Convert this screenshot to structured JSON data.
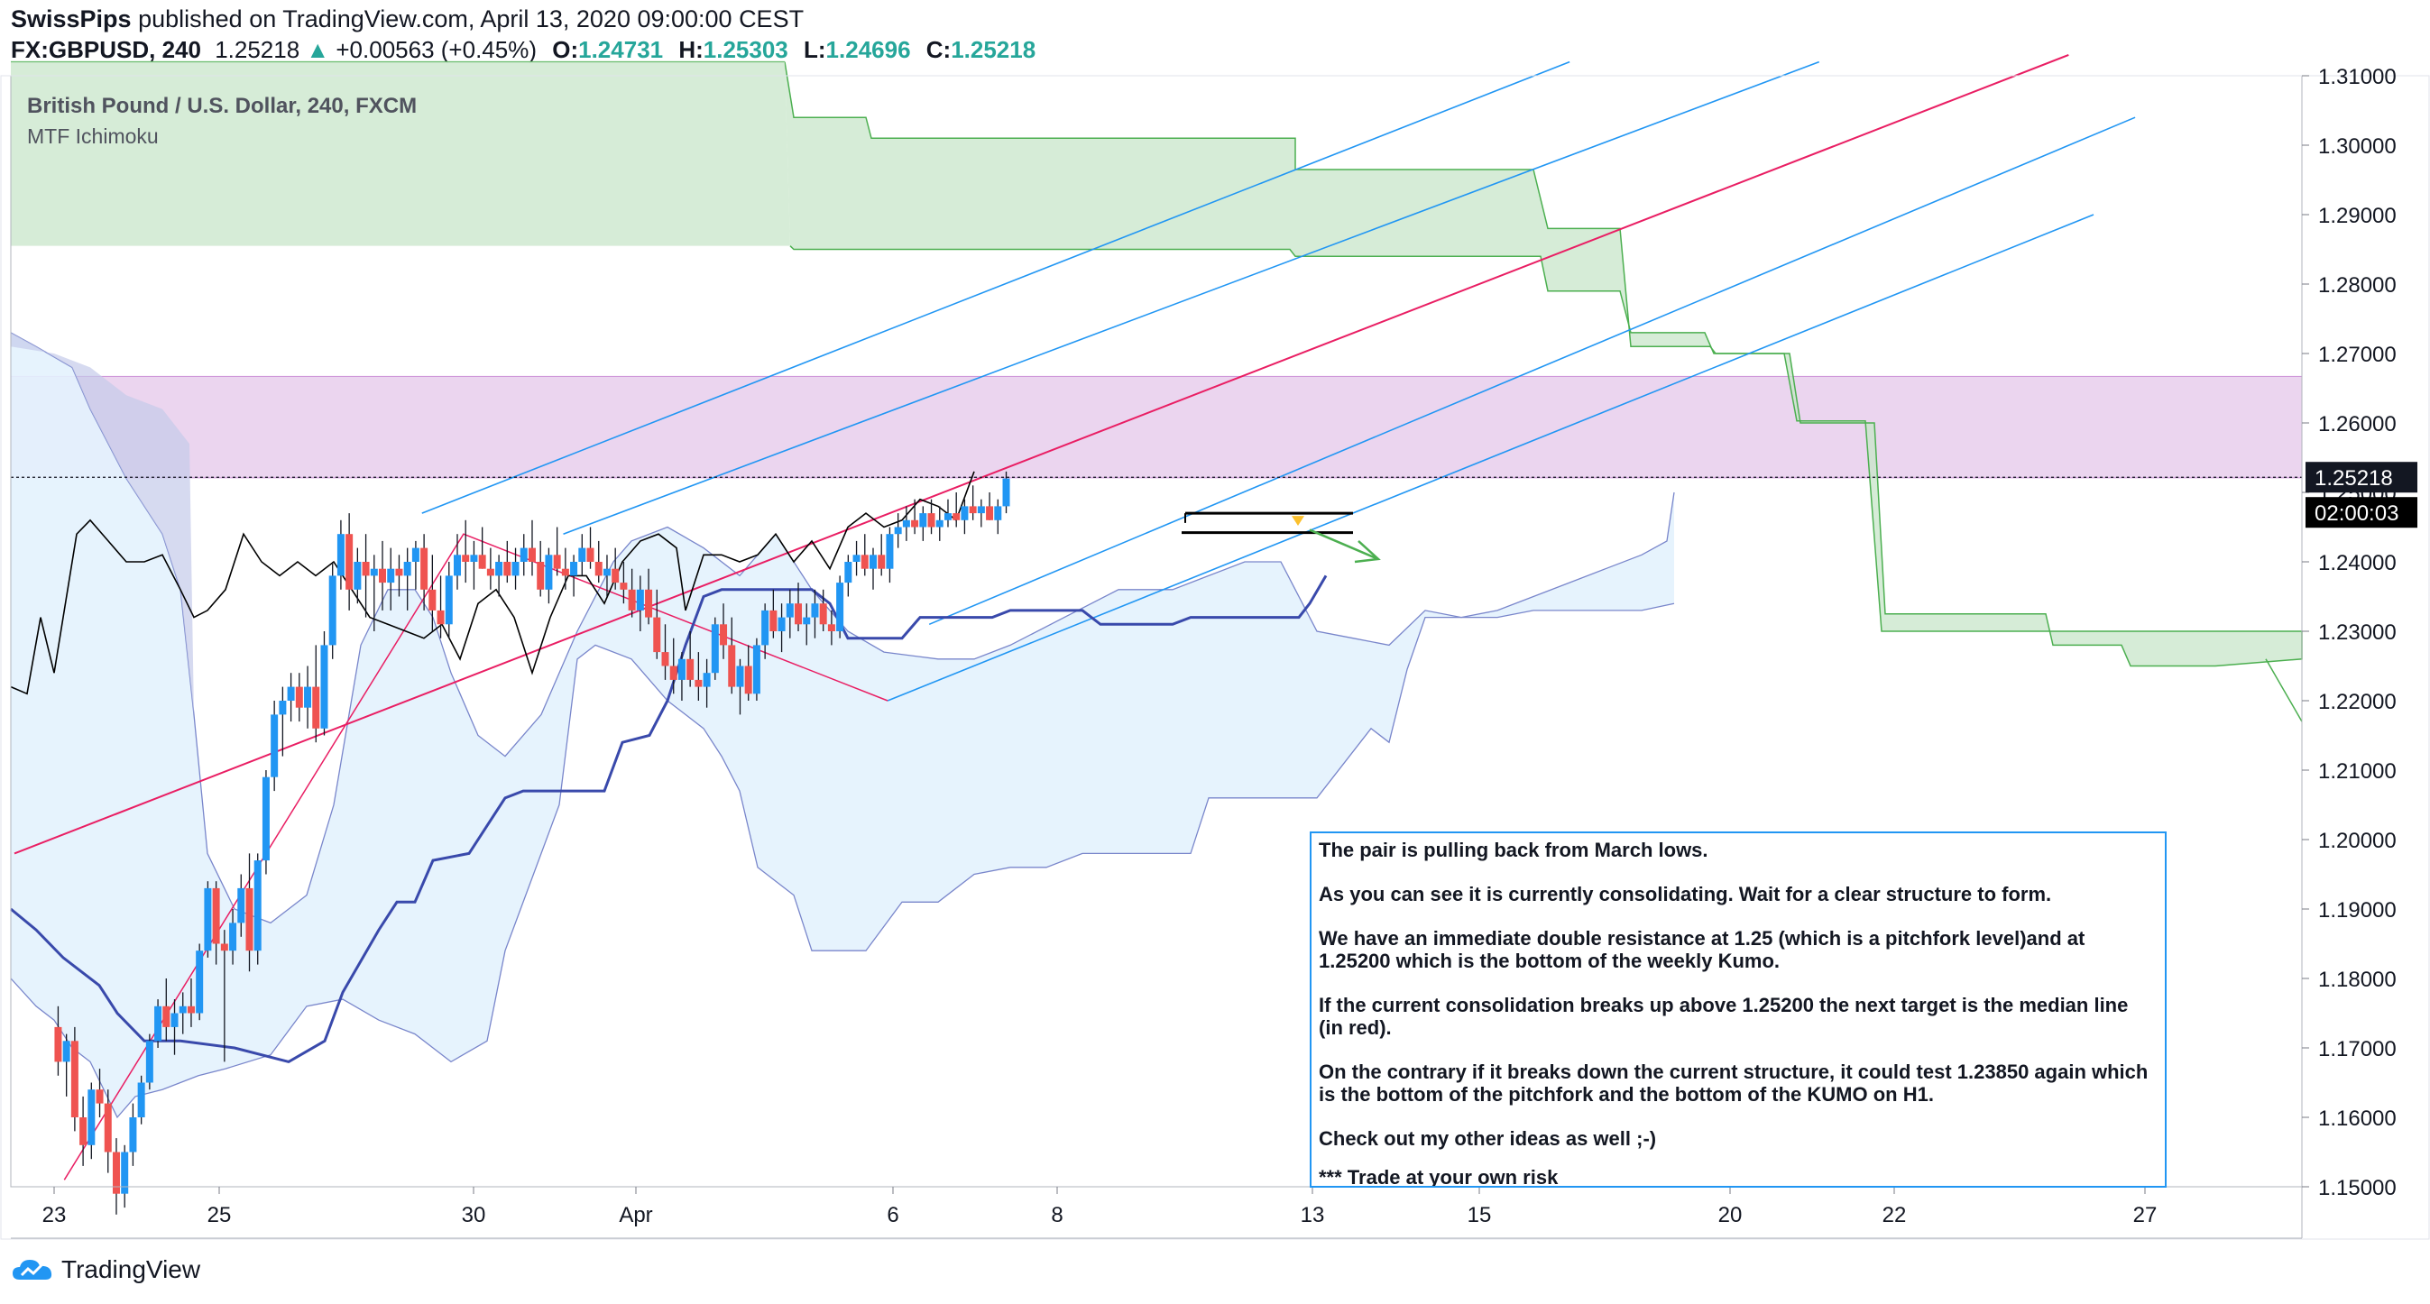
{
  "header": {
    "author": "SwissPips",
    "published_text": "published on TradingView.com, April 13, 2020 09:00:00 CEST",
    "symbol": "FX:GBPUSD, 240",
    "last": "1.25218",
    "change": "+0.00563 (+0.45%)",
    "o_label": "O:",
    "o": "1.24731",
    "h_label": "H:",
    "h": "1.25303",
    "l_label": "L:",
    "l": "1.24696",
    "c_label": "C:",
    "c": "1.25218"
  },
  "legend": {
    "title": "British Pound / U.S. Dollar, 240, FXCM",
    "indicator": "MTF Ichimoku"
  },
  "price_label": "1.25218",
  "countdown": "02:00:03",
  "note": {
    "p1": "The pair is pulling back from March lows.",
    "p2": "As you can see it is currently consolidating. Wait for a clear structure to form.",
    "p3": "We have an immediate double resistance at 1.25 (which is a pitchfork level)and at 1.25200 which is the bottom of the weekly Kumo.",
    "p4": "If the current consolidation breaks up above 1.25200 the next target is the median line (in red).",
    "p5": "On the contrary if it breaks down the current structure, it could test 1.23850 again which is the bottom of the pitchfork and the bottom of the KUMO on H1.",
    "p6": "Check out my other ideas as well ;-)",
    "p7": "*** Trade at your own risk"
  },
  "events": [
    "3",
    "4",
    "7",
    "9",
    "2"
  ],
  "footer": {
    "brand": "TradingView"
  },
  "colors": {
    "up": "#2196f3",
    "down": "#ef5350",
    "weekly_cloud": "#4caf50",
    "zone": "#e1bee7",
    "h1_cloud": "#90caf9",
    "median": "#e91e63"
  },
  "chart_data": {
    "type": "candlestick",
    "ylim": [
      1.15,
      1.31
    ],
    "y_ticks": [
      "1.31000",
      "1.30000",
      "1.29000",
      "1.28000",
      "1.27000",
      "1.26000",
      "1.25000",
      "1.24000",
      "1.23000",
      "1.22000",
      "1.21000",
      "1.20000",
      "1.19000",
      "1.18000",
      "1.17000",
      "1.16000",
      "1.15000"
    ],
    "x_ticks": [
      {
        "label": "23",
        "i": 5
      },
      {
        "label": "25",
        "i": 26
      },
      {
        "label": "30",
        "i": 51
      },
      {
        "label": "Apr",
        "i": 67
      },
      {
        "label": "6",
        "i": 93
      },
      {
        "label": "8",
        "i": 109
      },
      {
        "label": "13",
        "i": 134
      },
      {
        "label": "15",
        "i": 151
      },
      {
        "label": "20",
        "i": 176
      },
      {
        "label": "22",
        "i": 192
      },
      {
        "label": "27",
        "i": 217
      }
    ],
    "n_slots": 231,
    "candles": [
      [
        1.173,
        1.176,
        1.166,
        1.168
      ],
      [
        1.168,
        1.172,
        1.163,
        1.171
      ],
      [
        1.171,
        1.173,
        1.158,
        1.16
      ],
      [
        1.16,
        1.163,
        1.153,
        1.156
      ],
      [
        1.156,
        1.165,
        1.154,
        1.164
      ],
      [
        1.164,
        1.167,
        1.16,
        1.162
      ],
      [
        1.162,
        1.164,
        1.152,
        1.155
      ],
      [
        1.155,
        1.157,
        1.146,
        1.149
      ],
      [
        1.149,
        1.156,
        1.147,
        1.155
      ],
      [
        1.155,
        1.162,
        1.153,
        1.16
      ],
      [
        1.16,
        1.166,
        1.159,
        1.165
      ],
      [
        1.165,
        1.172,
        1.164,
        1.171
      ],
      [
        1.171,
        1.177,
        1.17,
        1.176
      ],
      [
        1.176,
        1.18,
        1.171,
        1.173
      ],
      [
        1.173,
        1.177,
        1.169,
        1.175
      ],
      [
        1.175,
        1.178,
        1.172,
        1.176
      ],
      [
        1.176,
        1.18,
        1.173,
        1.175
      ],
      [
        1.175,
        1.185,
        1.174,
        1.184
      ],
      [
        1.184,
        1.194,
        1.183,
        1.193
      ],
      [
        1.193,
        1.194,
        1.182,
        1.185
      ],
      [
        1.185,
        1.187,
        1.168,
        1.184
      ],
      [
        1.184,
        1.19,
        1.182,
        1.188
      ],
      [
        1.188,
        1.195,
        1.186,
        1.193
      ],
      [
        1.193,
        1.198,
        1.181,
        1.184
      ],
      [
        1.184,
        1.198,
        1.182,
        1.197
      ],
      [
        1.197,
        1.21,
        1.195,
        1.209
      ],
      [
        1.209,
        1.22,
        1.207,
        1.218
      ],
      [
        1.218,
        1.222,
        1.212,
        1.22
      ],
      [
        1.22,
        1.224,
        1.217,
        1.222
      ],
      [
        1.222,
        1.224,
        1.217,
        1.219
      ],
      [
        1.219,
        1.225,
        1.216,
        1.222
      ],
      [
        1.222,
        1.228,
        1.214,
        1.216
      ],
      [
        1.216,
        1.23,
        1.215,
        1.228
      ],
      [
        1.228,
        1.24,
        1.226,
        1.238
      ],
      [
        1.238,
        1.246,
        1.236,
        1.244
      ],
      [
        1.244,
        1.247,
        1.233,
        1.236
      ],
      [
        1.236,
        1.242,
        1.234,
        1.24
      ],
      [
        1.24,
        1.244,
        1.232,
        1.238
      ],
      [
        1.238,
        1.241,
        1.23,
        1.239
      ],
      [
        1.239,
        1.243,
        1.233,
        1.237
      ],
      [
        1.237,
        1.242,
        1.233,
        1.239
      ],
      [
        1.239,
        1.241,
        1.235,
        1.238
      ],
      [
        1.238,
        1.242,
        1.233,
        1.24
      ],
      [
        1.24,
        1.243,
        1.236,
        1.242
      ],
      [
        1.242,
        1.244,
        1.233,
        1.236
      ],
      [
        1.236,
        1.241,
        1.23,
        1.233
      ],
      [
        1.233,
        1.238,
        1.229,
        1.231
      ],
      [
        1.231,
        1.24,
        1.229,
        1.238
      ],
      [
        1.238,
        1.244,
        1.236,
        1.241
      ],
      [
        1.241,
        1.246,
        1.237,
        1.24
      ],
      [
        1.24,
        1.243,
        1.236,
        1.241
      ],
      [
        1.241,
        1.245,
        1.239,
        1.239
      ],
      [
        1.239,
        1.242,
        1.236,
        1.238
      ],
      [
        1.238,
        1.241,
        1.235,
        1.24
      ],
      [
        1.24,
        1.243,
        1.237,
        1.238
      ],
      [
        1.238,
        1.242,
        1.236,
        1.24
      ],
      [
        1.24,
        1.244,
        1.238,
        1.242
      ],
      [
        1.242,
        1.246,
        1.238,
        1.24
      ],
      [
        1.24,
        1.243,
        1.235,
        1.236
      ],
      [
        1.236,
        1.242,
        1.234,
        1.241
      ],
      [
        1.241,
        1.245,
        1.238,
        1.239
      ],
      [
        1.239,
        1.242,
        1.236,
        1.238
      ],
      [
        1.238,
        1.241,
        1.235,
        1.24
      ],
      [
        1.24,
        1.244,
        1.238,
        1.242
      ],
      [
        1.242,
        1.245,
        1.239,
        1.24
      ],
      [
        1.24,
        1.243,
        1.237,
        1.238
      ],
      [
        1.238,
        1.241,
        1.235,
        1.239
      ],
      [
        1.239,
        1.242,
        1.236,
        1.237
      ],
      [
        1.237,
        1.24,
        1.234,
        1.236
      ],
      [
        1.236,
        1.239,
        1.232,
        1.233
      ],
      [
        1.233,
        1.238,
        1.23,
        1.236
      ],
      [
        1.236,
        1.239,
        1.231,
        1.232
      ],
      [
        1.232,
        1.236,
        1.226,
        1.227
      ],
      [
        1.227,
        1.231,
        1.223,
        1.225
      ],
      [
        1.225,
        1.229,
        1.221,
        1.223
      ],
      [
        1.223,
        1.227,
        1.22,
        1.226
      ],
      [
        1.226,
        1.23,
        1.222,
        1.223
      ],
      [
        1.223,
        1.227,
        1.22,
        1.222
      ],
      [
        1.222,
        1.226,
        1.219,
        1.224
      ],
      [
        1.224,
        1.232,
        1.223,
        1.231
      ],
      [
        1.231,
        1.234,
        1.226,
        1.228
      ],
      [
        1.228,
        1.232,
        1.221,
        1.222
      ],
      [
        1.222,
        1.226,
        1.218,
        1.225
      ],
      [
        1.225,
        1.228,
        1.22,
        1.221
      ],
      [
        1.221,
        1.229,
        1.22,
        1.228
      ],
      [
        1.228,
        1.234,
        1.226,
        1.233
      ],
      [
        1.233,
        1.236,
        1.229,
        1.23
      ],
      [
        1.23,
        1.234,
        1.227,
        1.232
      ],
      [
        1.232,
        1.236,
        1.229,
        1.234
      ],
      [
        1.234,
        1.237,
        1.23,
        1.231
      ],
      [
        1.231,
        1.234,
        1.228,
        1.232
      ],
      [
        1.232,
        1.236,
        1.229,
        1.234
      ],
      [
        1.234,
        1.236,
        1.23,
        1.231
      ],
      [
        1.231,
        1.233,
        1.228,
        1.23
      ],
      [
        1.23,
        1.238,
        1.229,
        1.237
      ],
      [
        1.237,
        1.241,
        1.235,
        1.24
      ],
      [
        1.24,
        1.243,
        1.238,
        1.241
      ],
      [
        1.241,
        1.244,
        1.238,
        1.239
      ],
      [
        1.239,
        1.242,
        1.236,
        1.241
      ],
      [
        1.241,
        1.244,
        1.238,
        1.239
      ],
      [
        1.239,
        1.245,
        1.237,
        1.244
      ],
      [
        1.244,
        1.247,
        1.242,
        1.245
      ],
      [
        1.245,
        1.248,
        1.243,
        1.246
      ],
      [
        1.246,
        1.249,
        1.244,
        1.245
      ],
      [
        1.245,
        1.248,
        1.243,
        1.247
      ],
      [
        1.247,
        1.249,
        1.244,
        1.245
      ],
      [
        1.245,
        1.248,
        1.243,
        1.246
      ],
      [
        1.246,
        1.249,
        1.245,
        1.247
      ],
      [
        1.247,
        1.25,
        1.245,
        1.246
      ],
      [
        1.246,
        1.249,
        1.244,
        1.248
      ],
      [
        1.248,
        1.251,
        1.246,
        1.247
      ],
      [
        1.247,
        1.249,
        1.245,
        1.248
      ],
      [
        1.248,
        1.25,
        1.246,
        1.246
      ],
      [
        1.246,
        1.249,
        1.244,
        1.248
      ],
      [
        1.248,
        1.253,
        1.247,
        1.252
      ]
    ],
    "candle_start_slot": 2,
    "median_line": [
      [
        0,
        1.198
      ],
      [
        247,
        1.313
      ]
    ],
    "pitchfork_upper": [
      [
        49,
        1.247
      ],
      [
        187,
        1.312
      ]
    ],
    "pitchfork_lower": [
      [
        105,
        1.22
      ],
      [
        250,
        1.29
      ]
    ],
    "pitchfork_inner_upper": [
      [
        66,
        1.244
      ],
      [
        217,
        1.312
      ]
    ],
    "pitchfork_inner_lower": [
      [
        110,
        1.231
      ],
      [
        255,
        1.304
      ]
    ],
    "consolidation_top": 1.247,
    "consolidation_bottom": 1.2442,
    "zone": [
      1.2521,
      1.2667
    ]
  }
}
